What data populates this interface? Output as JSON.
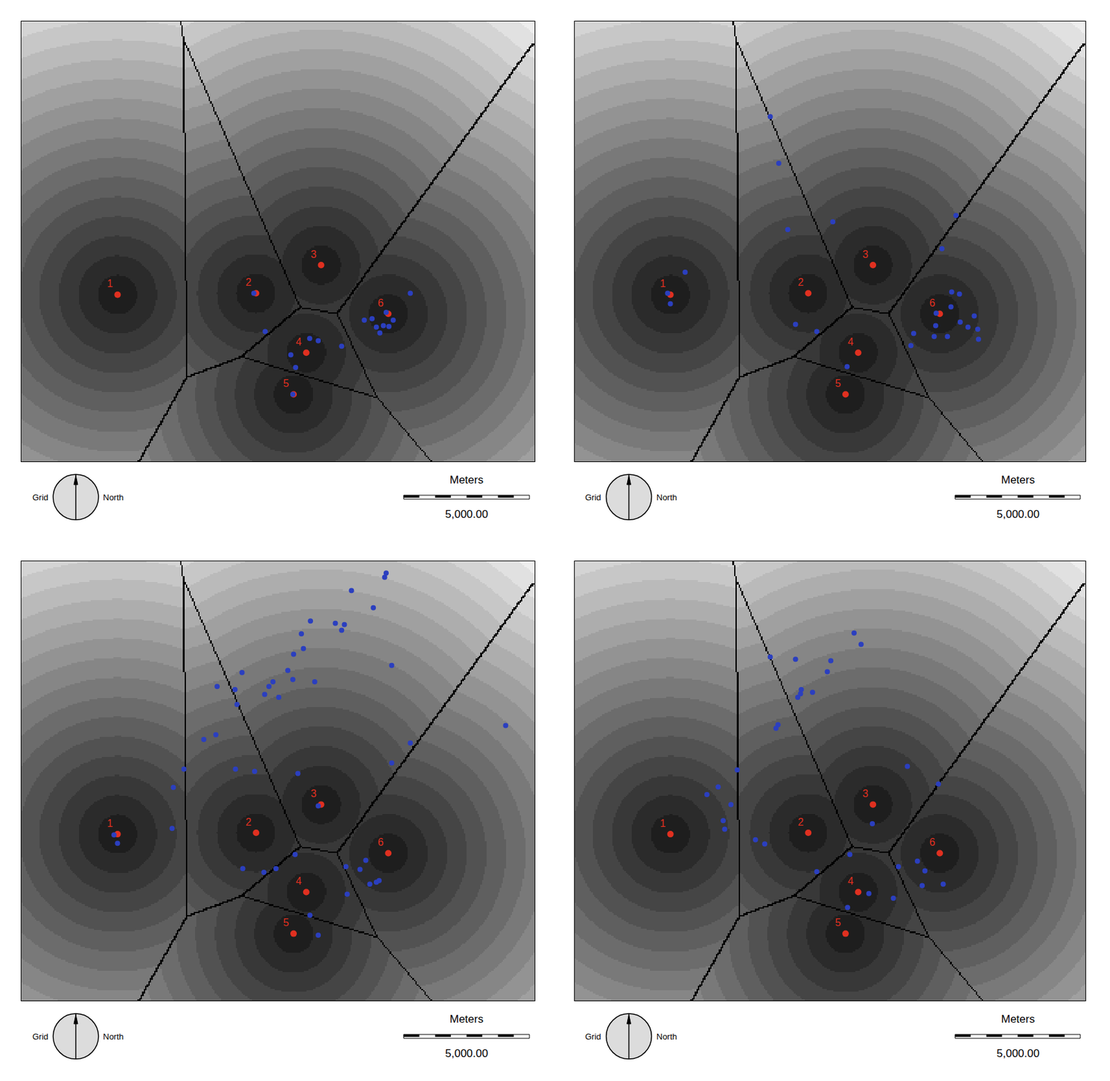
{
  "chart_data": [
    {
      "type": "scatter",
      "xlim": [
        0,
        20400
      ],
      "ylim": [
        0,
        17500
      ],
      "tick_labels": false,
      "grid": false,
      "scale_bar": {
        "title": "Meters",
        "length": 5000,
        "label": "5,000.00"
      },
      "north_arrow": {
        "left": "Grid",
        "right": "North"
      },
      "series": [
        {
          "color": "#e03020",
          "marker": "circle",
          "labels": [
            "1",
            "2",
            "3",
            "4",
            "5",
            "6"
          ],
          "x": [
            3822,
            9329,
            11914,
            11324,
            10819,
            14584
          ],
          "y": [
            6632,
            6688,
            7812,
            4327,
            2670,
            5873
          ]
        },
        {
          "color": "#2b3fbf",
          "marker": "circle",
          "x": [
            9240,
            9690,
            11460,
            11800,
            10710,
            10900,
            12730,
            10790,
            15460,
            13630,
            13940,
            14110,
            14250,
            14390,
            14610,
            14780,
            14500
          ],
          "y": [
            6690,
            5170,
            4890,
            4800,
            4240,
            3740,
            4580,
            2670,
            6690,
            5620,
            5680,
            5340,
            5110,
            5400,
            5370,
            5620,
            5930
          ]
        }
      ]
    },
    {
      "type": "scatter",
      "xlim": [
        0,
        20400
      ],
      "ylim": [
        0,
        17500
      ],
      "tick_labels": false,
      "grid": false,
      "scale_bar": {
        "title": "Meters",
        "length": 5000,
        "label": "5,000.00"
      },
      "north_arrow": {
        "left": "Grid",
        "right": "North"
      },
      "series": [
        {
          "color": "#e03020",
          "marker": "circle",
          "labels": [
            "1",
            "2",
            "3",
            "4",
            "5",
            "6"
          ],
          "x": [
            3822,
            9329,
            11914,
            11324,
            10819,
            14584
          ],
          "y": [
            6632,
            6688,
            7812,
            4327,
            2670,
            5873
          ]
        },
        {
          "color": "#2b3fbf",
          "marker": "circle",
          "x": [
            7810,
            8150,
            8510,
            10310,
            4410,
            3710,
            3820,
            8820,
            9670,
            10880,
            15230,
            14670,
            15060,
            15370,
            15030,
            14440,
            14420,
            15960,
            15400,
            15710,
            16100,
            16130,
            14890,
            14360,
            13540,
            13430
          ],
          "y": [
            13710,
            11860,
            9220,
            9530,
            7530,
            6690,
            6270,
            5450,
            5170,
            3770,
            9780,
            8460,
            6740,
            6660,
            6150,
            5900,
            5400,
            5790,
            5540,
            5340,
            5260,
            4860,
            4970,
            4970,
            5090,
            4610
          ]
        }
      ]
    },
    {
      "type": "scatter",
      "xlim": [
        0,
        20400
      ],
      "ylim": [
        0,
        17500
      ],
      "tick_labels": false,
      "grid": false,
      "scale_bar": {
        "title": "Meters",
        "length": 5000,
        "label": "5,000.00"
      },
      "north_arrow": {
        "left": "Grid",
        "right": "North"
      },
      "series": [
        {
          "color": "#e03020",
          "marker": "circle",
          "labels": [
            "1",
            "2",
            "3",
            "4",
            "5",
            "6"
          ],
          "x": [
            3822,
            9329,
            11914,
            11324,
            10819,
            14584
          ],
          "y": [
            6632,
            6688,
            7812,
            4327,
            2670,
            5873
          ]
        },
        {
          "color": "#2b3fbf",
          "marker": "circle",
          "x": [
            14500,
            14440,
            13120,
            13990,
            11490,
            12480,
            12840,
            12730,
            11130,
            14720,
            11210,
            10820,
            10590,
            8770,
            10790,
            11660,
            10000,
            9840,
            7780,
            8490,
            9670,
            10230,
            8570,
            19250,
            7730,
            7250,
            15460,
            14720,
            6460,
            8510,
            9270,
            10990,
            6040,
            11800,
            5990,
            3680,
            3820,
            8800,
            9640,
            10120,
            10880,
            12900,
            13690,
            13460,
            12950,
            13850,
            14110,
            14220,
            11470,
            11800
          ],
          "y": [
            17030,
            16860,
            16330,
            15650,
            15120,
            15030,
            14980,
            14750,
            14610,
            13350,
            14020,
            13800,
            13150,
            13070,
            12790,
            12700,
            12700,
            12510,
            12510,
            12390,
            12200,
            12080,
            11800,
            10960,
            10590,
            10400,
            10260,
            9470,
            9220,
            9220,
            9130,
            9050,
            8490,
            7760,
            6860,
            6600,
            6270,
            5260,
            5110,
            5260,
            5820,
            5340,
            5590,
            5230,
            4240,
            4640,
            4720,
            4780,
            3400,
            2610
          ]
        }
      ]
    },
    {
      "type": "scatter",
      "xlim": [
        0,
        20400
      ],
      "ylim": [
        0,
        17500
      ],
      "tick_labels": false,
      "grid": false,
      "scale_bar": {
        "title": "Meters",
        "length": 5000,
        "label": "5,000.00"
      },
      "north_arrow": {
        "left": "Grid",
        "right": "North"
      },
      "series": [
        {
          "color": "#e03020",
          "marker": "circle",
          "labels": [
            "1",
            "2",
            "3",
            "4",
            "5",
            "6"
          ],
          "x": [
            3822,
            9329,
            11914,
            11324,
            10819,
            14584
          ],
          "y": [
            6632,
            6688,
            7812,
            4327,
            2670,
            5873
          ]
        },
        {
          "color": "#2b3fbf",
          "marker": "circle",
          "x": [
            11160,
            11440,
            7810,
            8820,
            10230,
            10090,
            9050,
            9500,
            9020,
            8910,
            8120,
            8040,
            6490,
            13290,
            14530,
            5730,
            5280,
            6240,
            5930,
            5990,
            7220,
            7590,
            11890,
            9670,
            10990,
            11750,
            12930,
            13690,
            13990,
            14720,
            13880,
            12730,
            10900
          ],
          "y": [
            14640,
            14190,
            13690,
            13600,
            13540,
            13100,
            12390,
            12280,
            12220,
            12080,
            10990,
            10850,
            9190,
            9330,
            8630,
            8510,
            8210,
            7810,
            7170,
            6830,
            6410,
            6240,
            7050,
            5140,
            5820,
            4270,
            5340,
            5560,
            5170,
            4640,
            4580,
            4080,
            3710
          ]
        }
      ]
    }
  ]
}
